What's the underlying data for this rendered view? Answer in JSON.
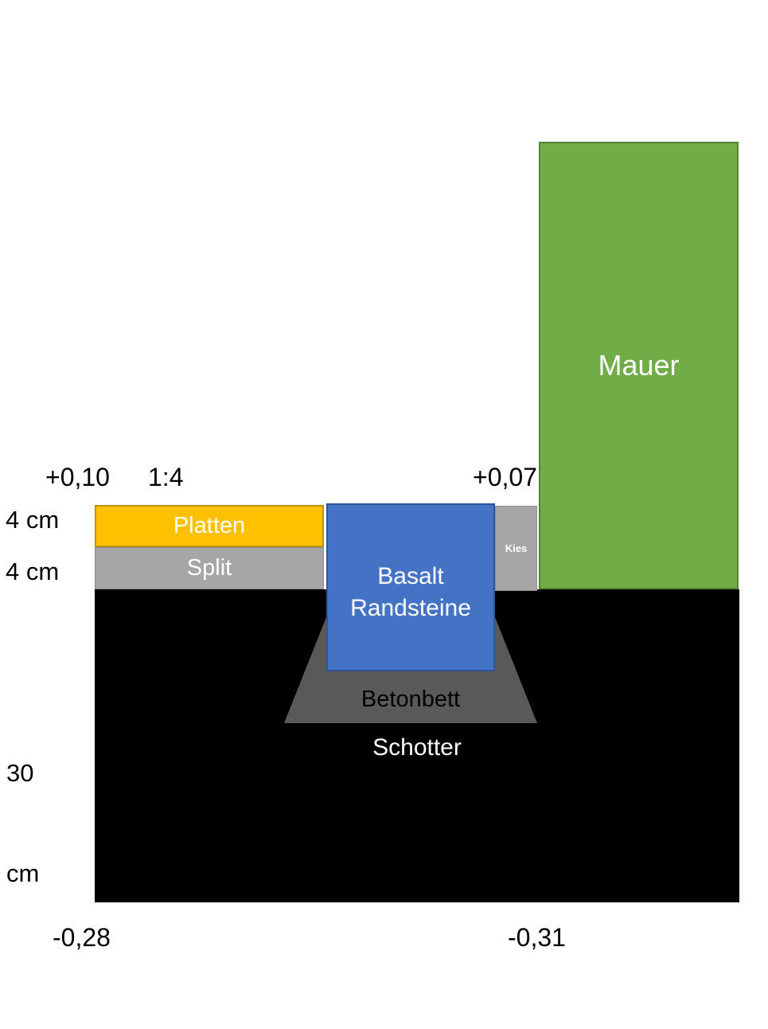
{
  "diagram": {
    "type": "construction-cross-section",
    "background": "#FFFFFF",
    "shapes": {
      "mauer": {
        "label": "Mauer",
        "fill": "#70AD47",
        "border": "#548235",
        "text_color": "#FFFFFF"
      },
      "platten": {
        "label": "Platten",
        "fill": "#FFC000",
        "border": "#BF9000",
        "text_color": "#FFFFFF"
      },
      "split": {
        "label": "Split",
        "fill": "#A6A6A6",
        "border": "#8A8A8A",
        "text_color": "#FFFFFF"
      },
      "basalt": {
        "label_line1": "Basalt",
        "label_line2": "Randsteine",
        "fill": "#4472C4",
        "border": "#2F5597",
        "text_color": "#FFFFFF"
      },
      "kies": {
        "label": "Kies",
        "fill": "#A6A6A6",
        "border": "#8F8F8F",
        "text_color": "#FFFFFF"
      },
      "betonbett": {
        "label": "Betonbett",
        "fill": "#595959",
        "text_color": "#000000"
      },
      "schotter": {
        "label": "Schotter",
        "fill": "#000000",
        "text_color": "#FFFFFF"
      }
    },
    "annotations": {
      "elevation_top_left": "+0,10",
      "slope_ratio": "1:4",
      "elevation_top_right": "+0,07",
      "platten_thickness": "4 cm",
      "split_thickness": "4 cm",
      "schotter_depth_value": "30",
      "schotter_depth_unit": "cm",
      "elevation_bottom_left": "-0,28",
      "elevation_bottom_right": "-0,31"
    }
  }
}
